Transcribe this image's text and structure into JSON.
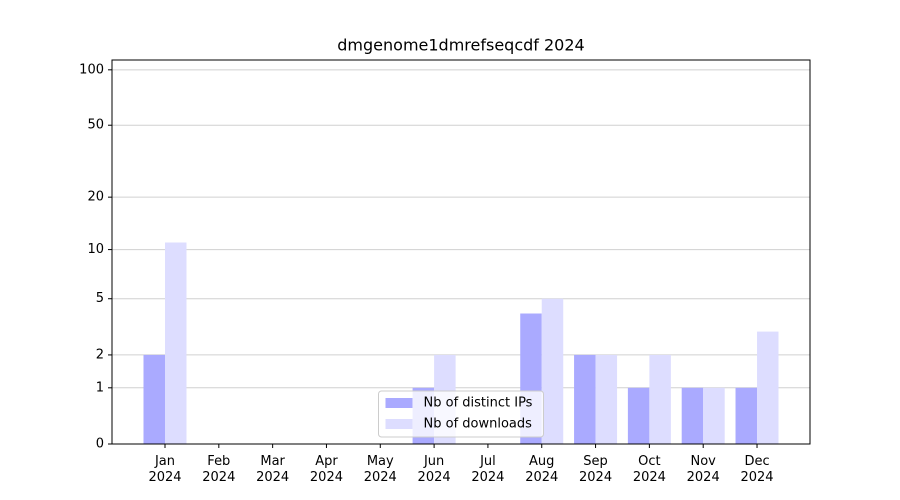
{
  "chart_data": {
    "type": "bar",
    "title": "dmgenome1dmrefseqcdf 2024",
    "categories": [
      "Jan 2024",
      "Feb 2024",
      "Mar 2024",
      "Apr 2024",
      "May 2024",
      "Jun 2024",
      "Jul 2024",
      "Aug 2024",
      "Sep 2024",
      "Oct 2024",
      "Nov 2024",
      "Dec 2024"
    ],
    "series": [
      {
        "name": "Nb of distinct IPs",
        "color": "#aaaaff",
        "values": [
          2,
          0,
          0,
          0,
          0,
          1,
          0,
          4,
          2,
          1,
          1,
          1
        ]
      },
      {
        "name": "Nb of downloads",
        "color": "#ddddff",
        "values": [
          11,
          0,
          0,
          0,
          0,
          2,
          0,
          5,
          2,
          2,
          1,
          3
        ]
      }
    ],
    "yscale": "log1p",
    "ylim": [
      0,
      113
    ],
    "yticks": [
      0,
      1,
      2,
      5,
      10,
      20,
      50,
      100
    ],
    "grid": true,
    "legend": "lower center"
  }
}
